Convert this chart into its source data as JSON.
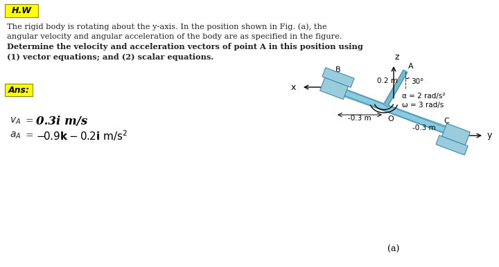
{
  "bg_color": "#ffffff",
  "title_box_color": "#ffff00",
  "title_box_text": "H.W",
  "ans_box_color": "#ffff00",
  "ans_box_text": "Ans:",
  "problem_line1": "The rigid body is rotating about the y-axis. In the position shown in Fig. (a), the",
  "problem_line2": "angular velocity and angular acceleration of the body are as specified in the figure.",
  "problem_line3": "Determine the velocity and acceleration vectors of point A in this position using",
  "problem_line4": "(1) vector equations; and (2) scalar equations.",
  "va_label": "v",
  "va_sub": "A",
  "va_eq": " =",
  "va_value": "0.3i m/s",
  "aa_label": "a",
  "aa_sub": "A",
  "aa_eq": " = –0.9k – 0.2i m/s²",
  "fig_label": "(a)",
  "alpha_label": "α = 2 rad/s²",
  "omega_label": "ω = 3 rad/s",
  "dim_OA": "0.2 m",
  "dim_BO": "-0.3 m",
  "dim_OC": "-0.3 m",
  "angle_label": "30°",
  "point_A": "A",
  "point_B": "B",
  "point_C": "C",
  "point_O": "O",
  "axis_z": "z",
  "axis_x": "x",
  "axis_y": "y",
  "shaft_color": "#88ccdd",
  "shaft_dark": "#5599bb",
  "bearing_color": "#99ccdd",
  "bearing_dark": "#4488aa",
  "text_color": "#222222"
}
